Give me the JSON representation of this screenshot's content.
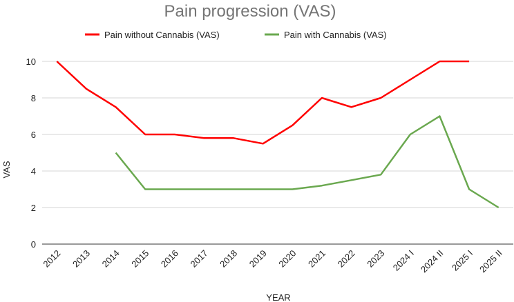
{
  "chart_data": {
    "type": "line",
    "title": "Pain progression (VAS)",
    "xlabel": "YEAR",
    "ylabel": "VAS",
    "categories": [
      "2012",
      "2013",
      "2014",
      "2015",
      "2016",
      "2017",
      "2018",
      "2019",
      "2020",
      "2021",
      "2022",
      "2023",
      "2024 I",
      "2024 II",
      "2025 I",
      "2025 II"
    ],
    "yticks": [
      0,
      2,
      4,
      6,
      8,
      10
    ],
    "ylim": [
      0,
      10
    ],
    "grid": true,
    "legend": "top",
    "series": [
      {
        "name": "Pain without Cannabis (VAS)",
        "color": "#ff0000",
        "values": [
          10,
          8.5,
          7.5,
          6,
          6,
          5.8,
          5.8,
          5.5,
          6.5,
          8,
          7.5,
          8,
          9,
          10,
          10,
          null
        ]
      },
      {
        "name": "Pain with Cannabis (VAS)",
        "color": "#6aa84f",
        "values": [
          null,
          null,
          5,
          3,
          3,
          3,
          3,
          3,
          3,
          3.2,
          3.5,
          3.8,
          6,
          7,
          3,
          2
        ]
      }
    ]
  }
}
